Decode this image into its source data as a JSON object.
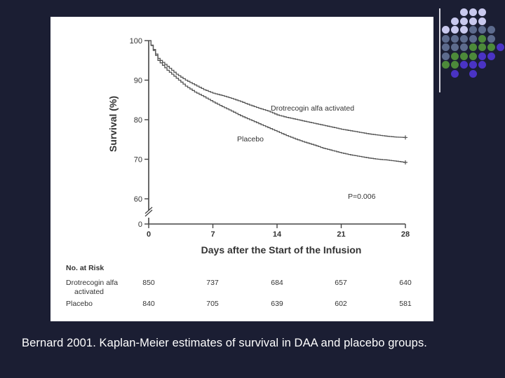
{
  "slide": {
    "caption": "Bernard 2001. Kaplan-Meier estimates of survival in DAA and placebo groups.",
    "background_color": "#1b1e33",
    "dot_colors": {
      "light": "#c9c9ee",
      "slate": "#5d6b8d",
      "green": "#4d8a3a",
      "violet": "#4a33c4"
    }
  },
  "chart_data": {
    "type": "line",
    "title": "",
    "xlabel": "Days after the Start of the Infusion",
    "ylabel": "Survival (%)",
    "x_ticks": [
      0,
      7,
      14,
      21,
      28
    ],
    "y_ticks": [
      100,
      90,
      80,
      70,
      60,
      0
    ],
    "xlim": [
      0,
      28
    ],
    "ylim": [
      58,
      100
    ],
    "axis_break": "between 0 and 60",
    "annotation": "P=0.006",
    "series": [
      {
        "name": "Drotrecogin alfa activated",
        "x": [
          0,
          1,
          2,
          3,
          4,
          5,
          6,
          7,
          8,
          9,
          10,
          11,
          12,
          13,
          14,
          15,
          16,
          17,
          18,
          19,
          20,
          21,
          22,
          23,
          24,
          25,
          26,
          27,
          28
        ],
        "y": [
          100,
          95.5,
          93.5,
          91.5,
          90,
          88.8,
          87.6,
          86.7,
          86.1,
          85.4,
          84.6,
          83.7,
          82.9,
          82.2,
          81.2,
          80.6,
          80.1,
          79.6,
          79.1,
          78.6,
          78.1,
          77.6,
          77.2,
          76.8,
          76.4,
          76.1,
          75.8,
          75.6,
          75.5
        ]
      },
      {
        "name": "Placebo",
        "x": [
          0,
          1,
          2,
          3,
          4,
          5,
          6,
          7,
          8,
          9,
          10,
          11,
          12,
          13,
          14,
          15,
          16,
          17,
          18,
          19,
          20,
          21,
          22,
          23,
          24,
          25,
          26,
          27,
          28
        ],
        "y": [
          100,
          95,
          92.5,
          90.5,
          88.5,
          87,
          85.8,
          84.5,
          83.3,
          82.2,
          81,
          80,
          79,
          78,
          77,
          76,
          75.1,
          74.3,
          73.6,
          72.8,
          72.2,
          71.6,
          71.1,
          70.7,
          70.3,
          70,
          69.8,
          69.5,
          69.2
        ]
      }
    ],
    "risk_table": {
      "header": "No. at Risk",
      "rows": [
        {
          "label": "Drotrecogin alfa",
          "label2": "activated",
          "values": [
            850,
            737,
            684,
            657,
            640
          ]
        },
        {
          "label": "Placebo",
          "values": [
            840,
            705,
            639,
            602,
            581
          ]
        }
      ]
    }
  }
}
